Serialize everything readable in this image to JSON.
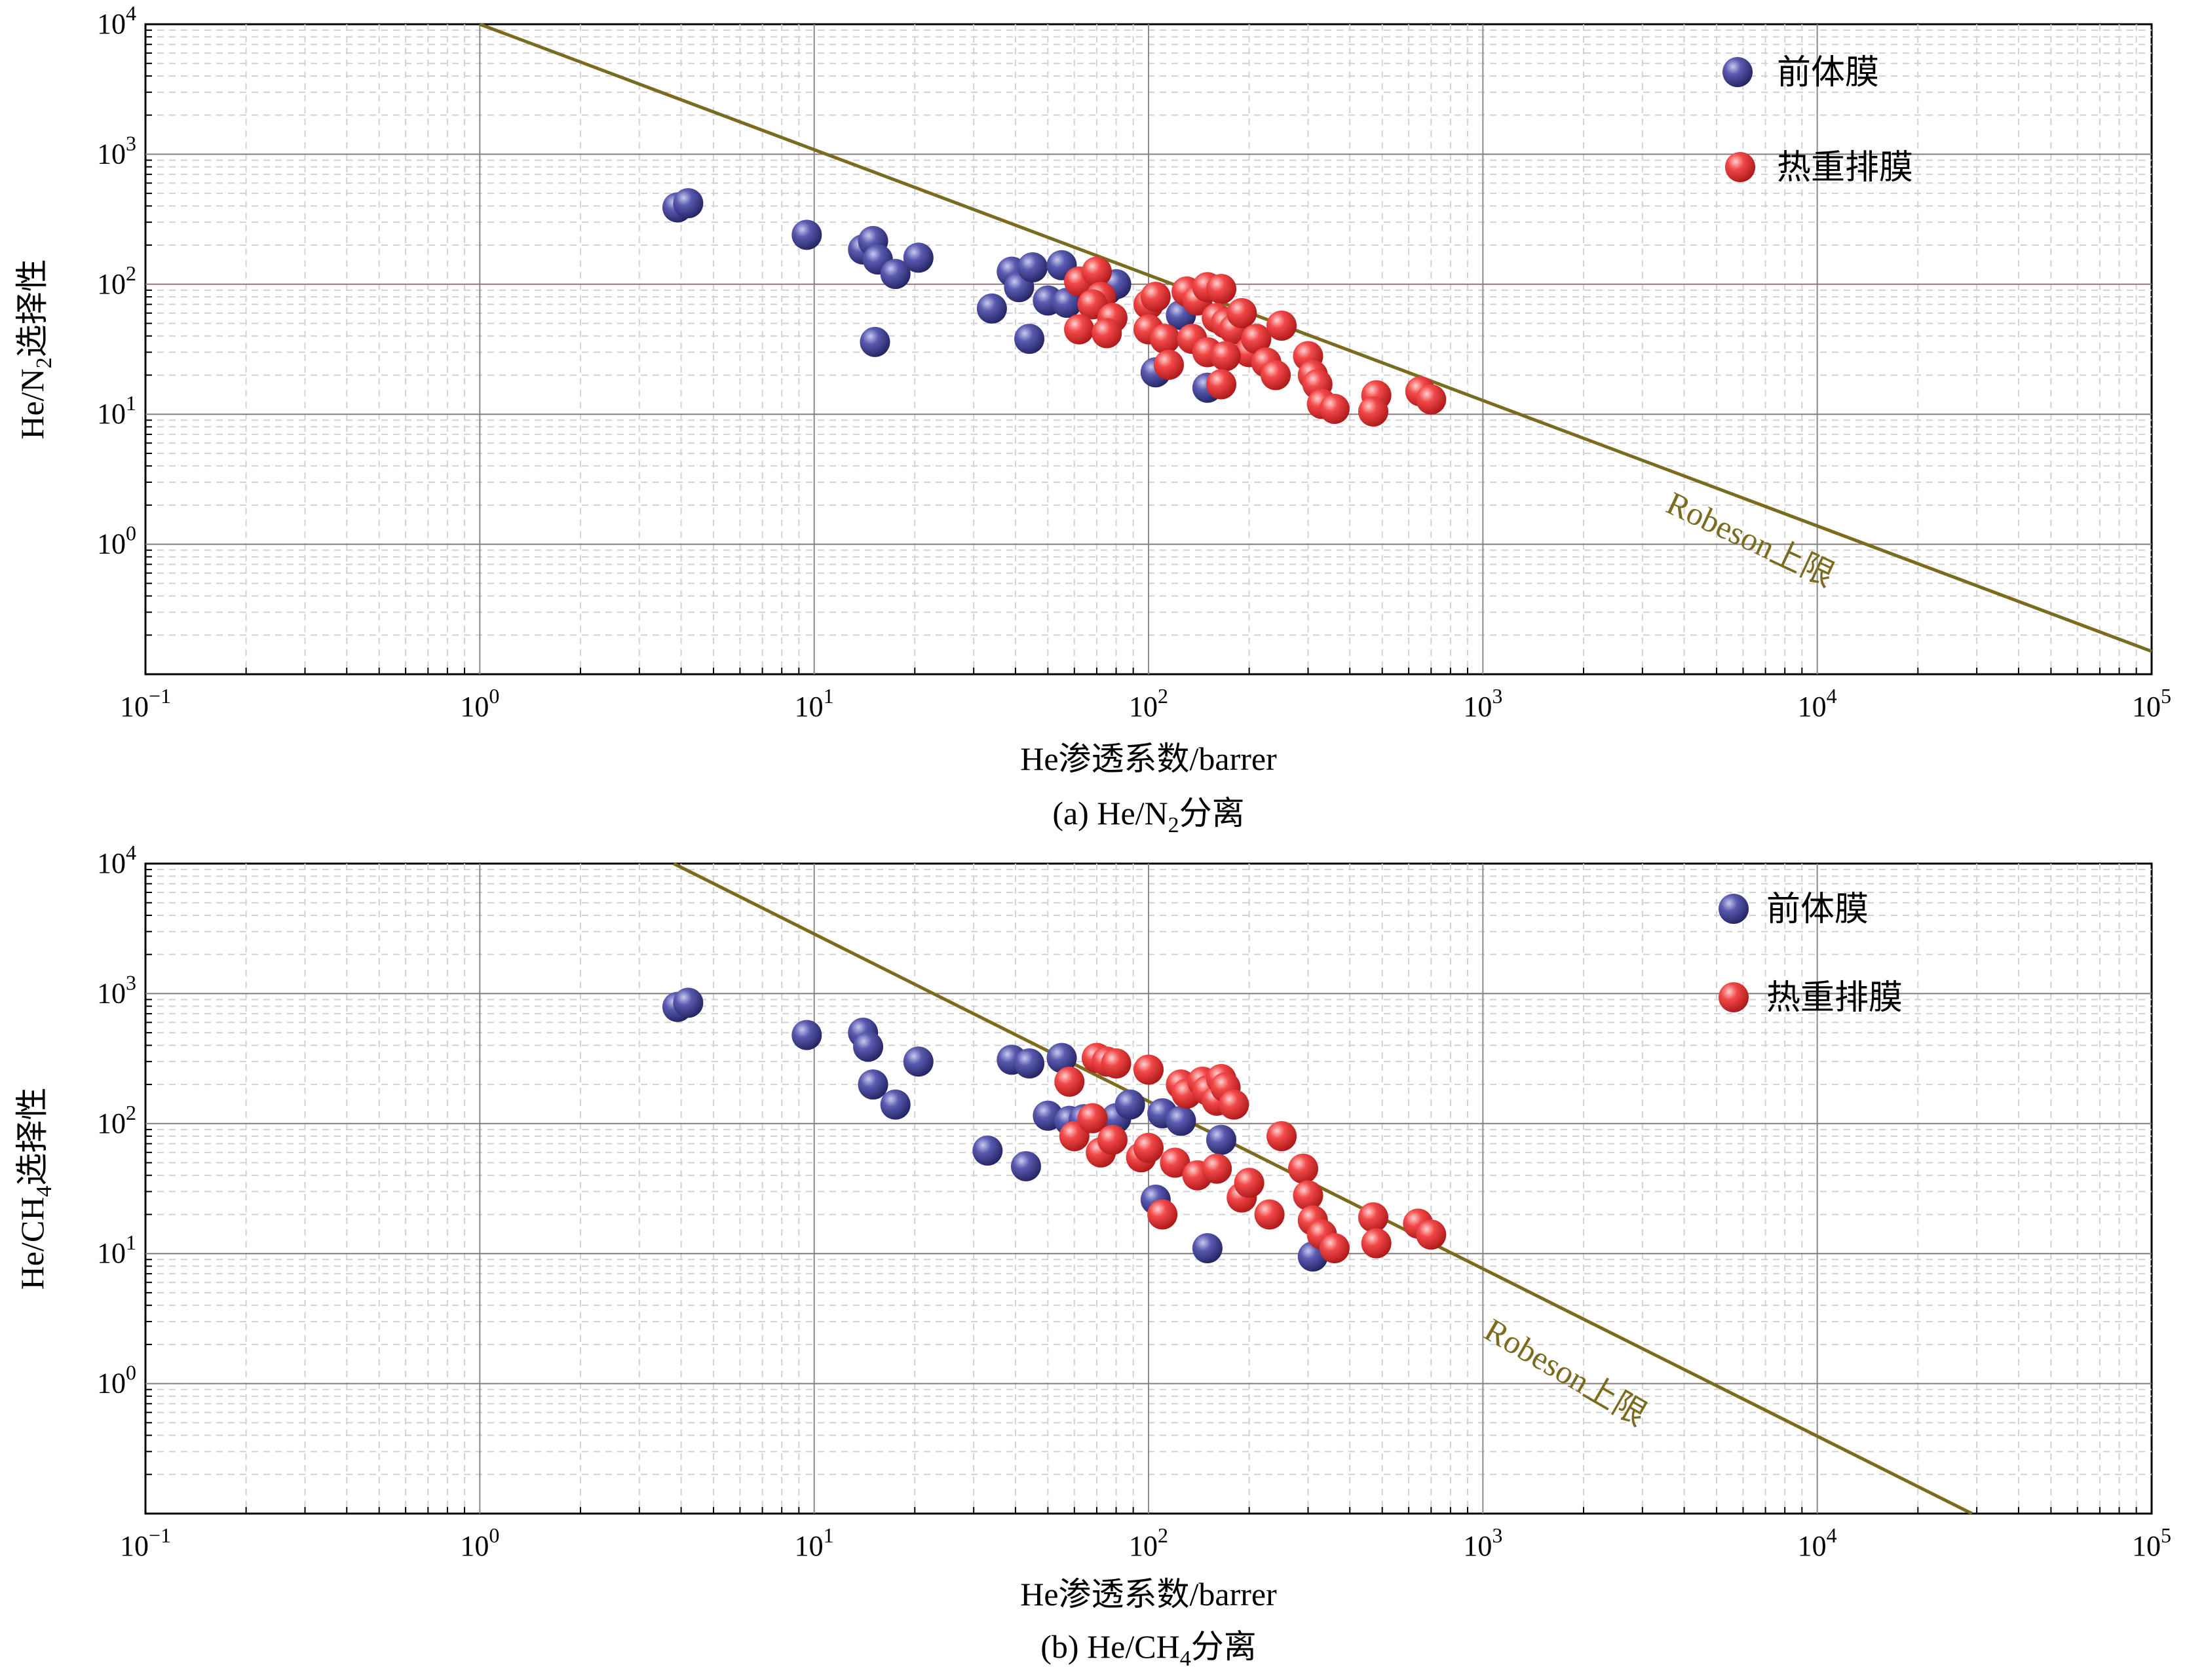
{
  "chart_data": [
    {
      "type": "scatter",
      "xscale": "log",
      "yscale": "log",
      "xlim": [
        0.1,
        100000
      ],
      "ylim": [
        0.1,
        10000
      ],
      "x_ticks": [
        "10",
        "10",
        "10",
        "10",
        "10",
        "10",
        "10"
      ],
      "x_tick_exps": [
        "−1",
        "0",
        "1",
        "2",
        "3",
        "4",
        "5"
      ],
      "y_ticks": [
        "10",
        "10",
        "10",
        "10",
        "10"
      ],
      "y_tick_exps": [
        "0",
        "1",
        "2",
        "3",
        "4"
      ],
      "ylabel_main": "He/N",
      "ylabel_sub": "2",
      "ylabel_rest": "选择性",
      "xlabel": "He渗透系数/barrer",
      "caption_main": "(a) He/N",
      "caption_sub": "2",
      "caption_rest": "分离",
      "grid": true,
      "upper_bound": {
        "label": "Robeson上限",
        "x": [
          1,
          100000
        ],
        "y": [
          10000,
          0.15
        ]
      },
      "legend": {
        "position": "top-right"
      },
      "series": [
        {
          "name": "前体膜",
          "color": "#3a3a8c",
          "points": [
            [
              3.9,
              390
            ],
            [
              4.2,
              420
            ],
            [
              9.5,
              240
            ],
            [
              14,
              185
            ],
            [
              15,
              215
            ],
            [
              15.5,
              155
            ],
            [
              17.5,
              120
            ],
            [
              20.5,
              160
            ],
            [
              15.2,
              36
            ],
            [
              34,
              65
            ],
            [
              39,
              125
            ],
            [
              41,
              95
            ],
            [
              45,
              135
            ],
            [
              44,
              38
            ],
            [
              50,
              75
            ],
            [
              55,
              140
            ],
            [
              57,
              72
            ],
            [
              75,
              90
            ],
            [
              80,
              100
            ],
            [
              105,
              21
            ],
            [
              150,
              16
            ],
            [
              125,
              58
            ]
          ]
        },
        {
          "name": "热重排膜",
          "color": "#e23232",
          "points": [
            [
              62,
              105
            ],
            [
              70,
              125
            ],
            [
              72,
              80
            ],
            [
              68,
              70
            ],
            [
              62,
              45
            ],
            [
              78,
              55
            ],
            [
              75,
              42
            ],
            [
              100,
              70
            ],
            [
              105,
              80
            ],
            [
              100,
              45
            ],
            [
              112,
              38
            ],
            [
              115,
              24
            ],
            [
              130,
              88
            ],
            [
              140,
              75
            ],
            [
              150,
              95
            ],
            [
              165,
              92
            ],
            [
              135,
              38
            ],
            [
              150,
              30
            ],
            [
              160,
              55
            ],
            [
              170,
              50
            ],
            [
              180,
              45
            ],
            [
              190,
              60
            ],
            [
              200,
              30
            ],
            [
              210,
              38
            ],
            [
              170,
              28
            ],
            [
              165,
              17
            ],
            [
              225,
              25
            ],
            [
              240,
              20
            ],
            [
              250,
              48
            ],
            [
              300,
              28
            ],
            [
              310,
              20
            ],
            [
              320,
              17
            ],
            [
              330,
              12
            ],
            [
              360,
              11
            ],
            [
              480,
              14
            ],
            [
              470,
              10.5
            ],
            [
              650,
              15
            ],
            [
              700,
              13
            ]
          ]
        }
      ]
    },
    {
      "type": "scatter",
      "xscale": "log",
      "yscale": "log",
      "xlim": [
        0.1,
        100000
      ],
      "ylim": [
        0.1,
        10000
      ],
      "x_ticks": [
        "10",
        "10",
        "10",
        "10",
        "10",
        "10",
        "10"
      ],
      "x_tick_exps": [
        "−1",
        "0",
        "1",
        "2",
        "3",
        "4",
        "5"
      ],
      "y_ticks": [
        "10",
        "10",
        "10",
        "10",
        "10"
      ],
      "y_tick_exps": [
        "0",
        "1",
        "2",
        "3",
        "4"
      ],
      "ylabel_main": "He/CH",
      "ylabel_sub": "4",
      "ylabel_rest": "选择性",
      "xlabel": "He渗透系数/barrer",
      "caption_main": "(b) He/CH",
      "caption_sub": "4",
      "caption_rest": "分离",
      "grid": true,
      "upper_bound": {
        "label": "Robeson上限",
        "x": [
          3.8,
          29000
        ],
        "y": [
          10000,
          0.1
        ]
      },
      "legend": {
        "position": "top-right"
      },
      "series": [
        {
          "name": "前体膜",
          "color": "#3a3a8c",
          "points": [
            [
              3.9,
              790
            ],
            [
              4.2,
              850
            ],
            [
              9.5,
              480
            ],
            [
              14,
              500
            ],
            [
              14.5,
              390
            ],
            [
              15,
              200
            ],
            [
              17.5,
              140
            ],
            [
              20.5,
              300
            ],
            [
              33,
              62
            ],
            [
              39,
              310
            ],
            [
              44,
              290
            ],
            [
              43,
              47
            ],
            [
              50,
              115
            ],
            [
              55,
              320
            ],
            [
              58,
              105
            ],
            [
              64,
              108
            ],
            [
              80,
              110
            ],
            [
              88,
              140
            ],
            [
              105,
              26
            ],
            [
              110,
              120
            ],
            [
              125,
              105
            ],
            [
              150,
              11
            ],
            [
              165,
              75
            ],
            [
              310,
              9.5
            ]
          ]
        },
        {
          "name": "热重排膜",
          "color": "#e23232",
          "points": [
            [
              58,
              210
            ],
            [
              70,
              320
            ],
            [
              75,
              300
            ],
            [
              80,
              290
            ],
            [
              100,
              260
            ],
            [
              60,
              80
            ],
            [
              68,
              110
            ],
            [
              72,
              60
            ],
            [
              78,
              75
            ],
            [
              95,
              55
            ],
            [
              100,
              65
            ],
            [
              110,
              20
            ],
            [
              125,
              200
            ],
            [
              130,
              170
            ],
            [
              145,
              210
            ],
            [
              150,
              180
            ],
            [
              160,
              150
            ],
            [
              165,
              220
            ],
            [
              170,
              190
            ],
            [
              180,
              140
            ],
            [
              120,
              50
            ],
            [
              140,
              40
            ],
            [
              160,
              45
            ],
            [
              190,
              27
            ],
            [
              200,
              35
            ],
            [
              230,
              20
            ],
            [
              250,
              80
            ],
            [
              290,
              45
            ],
            [
              300,
              28
            ],
            [
              310,
              18
            ],
            [
              330,
              14
            ],
            [
              360,
              11
            ],
            [
              470,
              19
            ],
            [
              480,
              12
            ],
            [
              640,
              17
            ],
            [
              700,
              14
            ]
          ]
        }
      ]
    }
  ]
}
